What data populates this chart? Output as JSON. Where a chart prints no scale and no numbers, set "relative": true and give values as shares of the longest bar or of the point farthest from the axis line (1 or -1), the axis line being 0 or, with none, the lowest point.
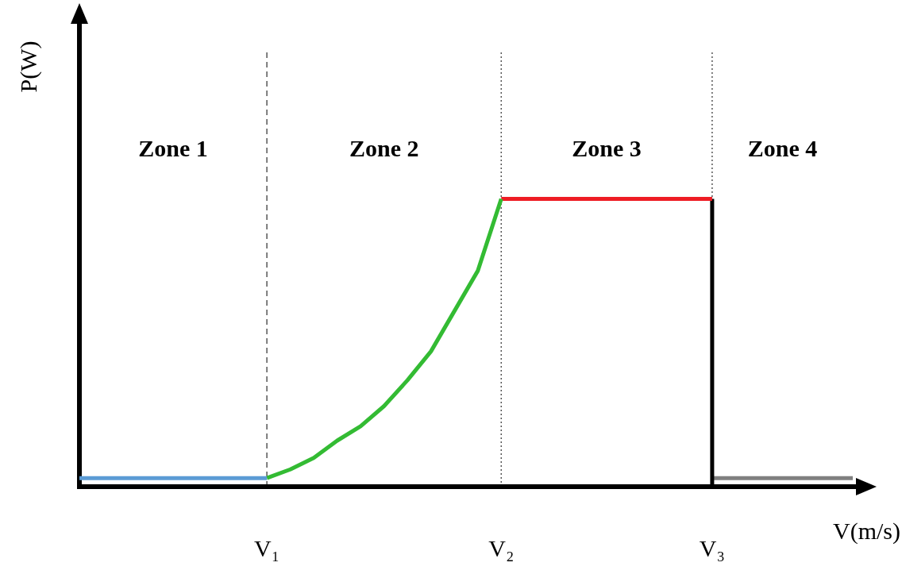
{
  "chart_data": {
    "type": "line",
    "relative": true,
    "xlabel": "V(m/s)",
    "ylabel": "P(W)",
    "categories": [
      null,
      null,
      null,
      null,
      null,
      null,
      null,
      null,
      "V₁",
      null,
      null,
      null,
      null,
      null,
      null,
      null,
      null,
      null,
      "V₂",
      null,
      null,
      null,
      null,
      null,
      null,
      null,
      null,
      "V₃",
      null,
      null,
      null,
      null,
      null,
      null
    ],
    "tick_labels": "x",
    "grid": false,
    "legend": false,
    "marker": "none",
    "line_style": "solid",
    "series": [
      {
        "color": "#5b9bd5",
        "values": [
          0.03,
          0.03,
          0.03,
          0.03,
          0.03,
          0.03,
          0.03,
          0.03,
          0.03,
          null,
          null,
          null,
          null,
          null,
          null,
          null,
          null,
          null,
          null,
          null,
          null,
          null,
          null,
          null,
          null,
          null,
          null,
          null,
          null,
          null,
          null,
          null,
          null,
          null
        ]
      },
      {
        "color": "#33bb33",
        "values": [
          null,
          null,
          null,
          null,
          null,
          null,
          null,
          null,
          0.03,
          0.06,
          0.1,
          0.16,
          0.21,
          0.28,
          0.37,
          0.47,
          0.61,
          0.75,
          1,
          null,
          null,
          null,
          null,
          null,
          null,
          null,
          null,
          null,
          null,
          null,
          null,
          null,
          null,
          null
        ]
      },
      {
        "color": "#ee1c24",
        "values": [
          null,
          null,
          null,
          null,
          null,
          null,
          null,
          null,
          null,
          null,
          null,
          null,
          null,
          null,
          null,
          null,
          null,
          null,
          1,
          1,
          1,
          1,
          1,
          1,
          1,
          1,
          1,
          1,
          null,
          null,
          null,
          null,
          null,
          null
        ]
      },
      {
        "type": "step",
        "color": "#000000",
        "values": [
          null,
          null,
          null,
          null,
          null,
          null,
          null,
          null,
          null,
          null,
          null,
          null,
          null,
          null,
          null,
          null,
          null,
          null,
          null,
          null,
          null,
          null,
          null,
          null,
          null,
          null,
          null,
          1,
          0,
          null,
          null,
          null,
          null,
          null
        ]
      },
      {
        "color": "#808080",
        "values": [
          null,
          null,
          null,
          null,
          null,
          null,
          null,
          null,
          null,
          null,
          null,
          null,
          null,
          null,
          null,
          null,
          null,
          null,
          null,
          null,
          null,
          null,
          null,
          null,
          null,
          null,
          null,
          0.03,
          0.03,
          0.03,
          0.03,
          0.03,
          0.03,
          0.03
        ]
      }
    ],
    "ref_lines": [
      {
        "axis": "x",
        "value": "V₁",
        "color": "#555555",
        "line_style": "dashed"
      },
      {
        "axis": "x",
        "value": "V₂",
        "color": "#555555",
        "line_style": "dotted"
      },
      {
        "axis": "x",
        "value": "V₃",
        "color": "#555555",
        "line_style": "dotted"
      }
    ],
    "annotations": [
      "Zone 1",
      "Zone 2",
      "Zone 3",
      "Zone 4"
    ]
  }
}
